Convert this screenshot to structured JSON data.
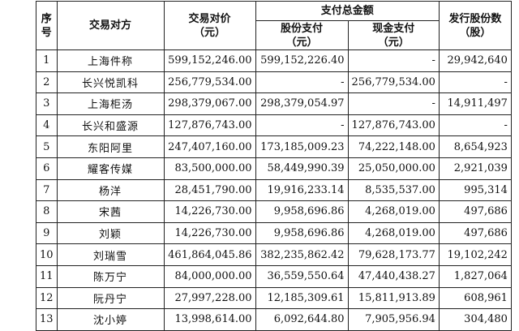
{
  "headers": {
    "seq": "序\n号",
    "counterparty": "交易对方",
    "price": "交易对价\n（元）",
    "payment_total": "支付总金额",
    "share_pay": "股份支付\n（元）",
    "cash_pay": "现金支付\n（元）",
    "shares_issued": "发行股份数\n（股）"
  },
  "rows": [
    {
      "seq": "1",
      "party": "上海件称",
      "price": "599,152,246.00",
      "share": "599,152,226.40",
      "cash": "-",
      "shares": "29,942,640"
    },
    {
      "seq": "2",
      "party": "长兴悦凯科",
      "price": "256,779,534.00",
      "share": "-",
      "cash": "256,779,534.00",
      "shares": "-"
    },
    {
      "seq": "3",
      "party": "上海柜汤",
      "price": "298,379,067.00",
      "share": "298,379,054.97",
      "cash": "-",
      "shares": "14,911,497"
    },
    {
      "seq": "4",
      "party": "长兴和盛源",
      "price": "127,876,743.00",
      "share": "-",
      "cash": "127,876,743.00",
      "shares": "-"
    },
    {
      "seq": "5",
      "party": "东阳阿里",
      "price": "247,407,160.00",
      "share": "173,185,009.23",
      "cash": "74,222,148.00",
      "shares": "8,654,923"
    },
    {
      "seq": "6",
      "party": "耀客传媒",
      "price": "83,500,000.00",
      "share": "58,449,990.39",
      "cash": "25,050,000.00",
      "shares": "2,921,039"
    },
    {
      "seq": "7",
      "party": "杨洋",
      "price": "28,451,790.00",
      "share": "19,916,233.14",
      "cash": "8,535,537.00",
      "shares": "995,314"
    },
    {
      "seq": "8",
      "party": "宋茜",
      "price": "14,226,730.00",
      "share": "9,958,696.86",
      "cash": "4,268,019.00",
      "shares": "497,686"
    },
    {
      "seq": "9",
      "party": "刘颖",
      "price": "14,226,730.00",
      "share": "9,958,696.86",
      "cash": "4,268,019.00",
      "shares": "497,686"
    },
    {
      "seq": "10",
      "party": "刘瑞雪",
      "price": "461,864,045.86",
      "share": "382,235,862.42",
      "cash": "79,628,173.77",
      "shares": "19,102,242"
    },
    {
      "seq": "11",
      "party": "陈万宁",
      "price": "84,000,000.00",
      "share": "36,559,550.64",
      "cash": "47,440,438.27",
      "shares": "1,827,064"
    },
    {
      "seq": "12",
      "party": "阮丹宁",
      "price": "27,997,228.00",
      "share": "12,185,309.61",
      "cash": "15,811,913.89",
      "shares": "608,961"
    },
    {
      "seq": "13",
      "party": "沈小婷",
      "price": "13,998,614.00",
      "share": "6,092,644.80",
      "cash": "7,905,956.94",
      "shares": "304,480"
    }
  ]
}
